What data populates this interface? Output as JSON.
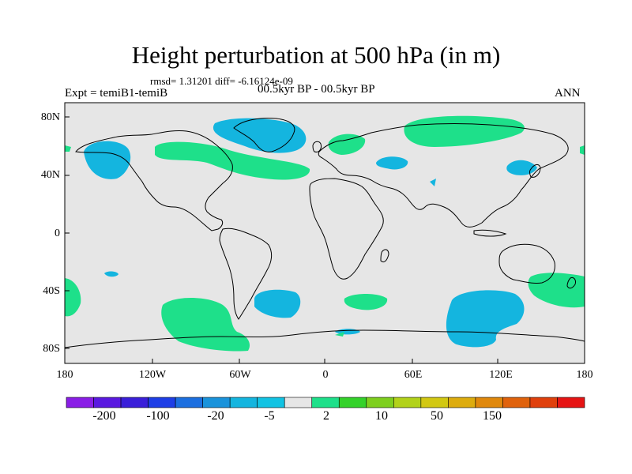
{
  "header": {
    "title": "Height perturbation at 500 hPa (in m)",
    "rmsd_line": "rmsd= 1.31201 diff= -6.16124e-09",
    "experiment": "Expt = temiB1-temiB",
    "period": "00.5kyr BP - 00.5kyr BP",
    "season": "ANN"
  },
  "axes": {
    "y_ticks": [
      "80N",
      "40N",
      "0",
      "40S",
      "80S"
    ],
    "x_ticks": [
      "180",
      "120W",
      "60W",
      "0",
      "60E",
      "120E",
      "180"
    ]
  },
  "colorbar": {
    "labels": [
      "-200",
      "-100",
      "-20",
      "-5",
      "2",
      "10",
      "50",
      "150"
    ],
    "colors": [
      "#8a1ee6",
      "#5a19e0",
      "#3a1fd9",
      "#1e3ee6",
      "#1c6fe0",
      "#1a93db",
      "#14b5df",
      "#12c3e3",
      "#e6e6e6",
      "#1ee08a",
      "#34d22a",
      "#7ecf1e",
      "#b2d21a",
      "#d2c812",
      "#ddac0e",
      "#e0880c",
      "#e0620c",
      "#e0400c",
      "#e61414"
    ]
  },
  "map": {
    "background_color": "#e6e6e6",
    "negative_color": "#14b5df",
    "positive_color": "#1ee08a",
    "coastline_color": "#000000"
  }
}
